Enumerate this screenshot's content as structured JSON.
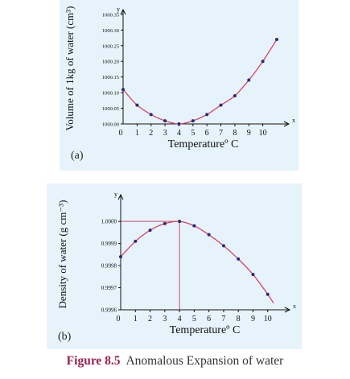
{
  "caption": {
    "label": "Figure 8.5",
    "text": "Anomalous Expansion of water"
  },
  "chart_data": [
    {
      "type": "line",
      "panel_label": "(a)",
      "title": "",
      "xlabel": "Temperatureº C",
      "ylabel": "Volume of 1kg of water (cm³)",
      "x_axis_letter": "x",
      "y_axis_letter": "y",
      "xlim": [
        0,
        11
      ],
      "ylim": [
        1000.0,
        1000.36
      ],
      "x_ticks": [
        0,
        1,
        2,
        3,
        4,
        5,
        6,
        7,
        8,
        9,
        10
      ],
      "x_tick_labels": [
        "0",
        "1",
        "2",
        "3",
        "4",
        "5",
        "6",
        "7",
        "8",
        "9",
        "10"
      ],
      "y_ticks": [
        1000.0,
        1000.05,
        1000.1,
        1000.15,
        1000.2,
        1000.25,
        1000.3,
        1000.35
      ],
      "y_tick_labels": [
        "1000.00",
        "1000.05",
        "1000.10",
        "1000.15",
        "1000.20",
        "1000.25",
        "1000.30",
        "1000.35"
      ],
      "x": [
        0,
        1,
        2,
        3,
        4,
        5,
        6,
        7,
        8,
        9,
        10,
        11
      ],
      "values": [
        1000.11,
        1000.06,
        1000.03,
        1000.01,
        1000.0,
        1000.01,
        1000.03,
        1000.06,
        1000.09,
        1000.14,
        1000.2,
        1000.27
      ],
      "guide": null,
      "colors": {
        "line": "#d8456b",
        "marker": "#2a2a78",
        "background": "#e6f3fb"
      }
    },
    {
      "type": "line",
      "panel_label": "(b)",
      "title": "",
      "xlabel": "Temperatureº C",
      "ylabel": "Density of water (g cm⁻³)",
      "x_axis_letter": "x",
      "y_axis_letter": "y",
      "xlim": [
        0,
        11
      ],
      "ylim": [
        0.9996,
        1.00015
      ],
      "x_ticks": [
        0,
        1,
        2,
        3,
        4,
        5,
        6,
        7,
        8,
        9,
        10
      ],
      "x_tick_labels": [
        "0",
        "1",
        "2",
        "3",
        "4",
        "5",
        "6",
        "7",
        "8",
        "9",
        "10"
      ],
      "y_ticks": [
        0.9996,
        0.9997,
        0.9998,
        0.9999,
        1.0
      ],
      "y_tick_labels": [
        "0.9996",
        "0.9997",
        "0.9998",
        "0.9999",
        "1.0000"
      ],
      "x": [
        0,
        1,
        2,
        3,
        4,
        5,
        6,
        7,
        8,
        9,
        10,
        10.4
      ],
      "values": [
        0.99984,
        0.99991,
        0.99996,
        0.99999,
        1.0,
        0.99998,
        0.99994,
        0.99989,
        0.99983,
        0.99976,
        0.99967,
        0.99963
      ],
      "markers_x": [
        0,
        1,
        2,
        3,
        4,
        5,
        6,
        7,
        8,
        9,
        10
      ],
      "guide": {
        "x": 4,
        "y": 1.0
      },
      "colors": {
        "line": "#d8456b",
        "marker": "#2a2a78",
        "background": "#e6f3fb"
      }
    }
  ]
}
